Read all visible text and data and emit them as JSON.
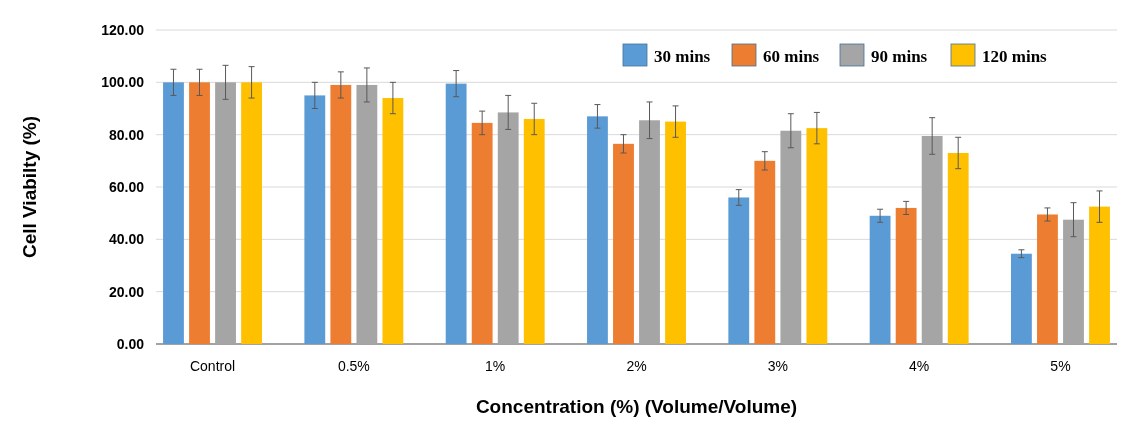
{
  "chart_data": {
    "type": "bar",
    "xlabel": "Concentration (%) (Volume/Volume)",
    "ylabel": "Cell Viabilty (%)",
    "categories": [
      "Control",
      "0.5%",
      "1%",
      "2%",
      "3%",
      "4%",
      "5%"
    ],
    "series": [
      {
        "name": "30 mins",
        "color": "#5b9bd5",
        "values": [
          100,
          95,
          99.5,
          87,
          56,
          49,
          34.5
        ],
        "errors": [
          5,
          5,
          5,
          4.5,
          3,
          2.5,
          1.5
        ]
      },
      {
        "name": "60 mins",
        "color": "#ed7d31",
        "values": [
          100,
          99,
          84.5,
          76.5,
          70,
          52,
          49.5
        ],
        "errors": [
          5,
          5,
          4.5,
          3.5,
          3.5,
          2.5,
          2.5
        ]
      },
      {
        "name": "90 mins",
        "color": "#a5a5a5",
        "values": [
          100,
          99,
          88.5,
          85.5,
          81.5,
          79.5,
          47.5
        ],
        "errors": [
          6.5,
          6.5,
          6.5,
          7,
          6.5,
          7,
          6.5
        ]
      },
      {
        "name": "120 mins",
        "color": "#ffc000",
        "values": [
          100,
          94,
          86,
          85,
          82.5,
          73,
          52.5
        ],
        "errors": [
          6,
          6,
          6,
          6,
          6,
          6,
          6
        ]
      }
    ],
    "ylim": [
      0,
      120
    ],
    "yticks": [
      {
        "value": 0,
        "label": "0.00"
      },
      {
        "value": 20,
        "label": "20.00"
      },
      {
        "value": 40,
        "label": "40.00"
      },
      {
        "value": 60,
        "label": "60.00"
      },
      {
        "value": 80,
        "label": "80.00"
      },
      {
        "value": 100,
        "label": "100.00"
      },
      {
        "value": 120,
        "label": "120.00"
      }
    ],
    "grid": "y",
    "legend": "top right"
  }
}
